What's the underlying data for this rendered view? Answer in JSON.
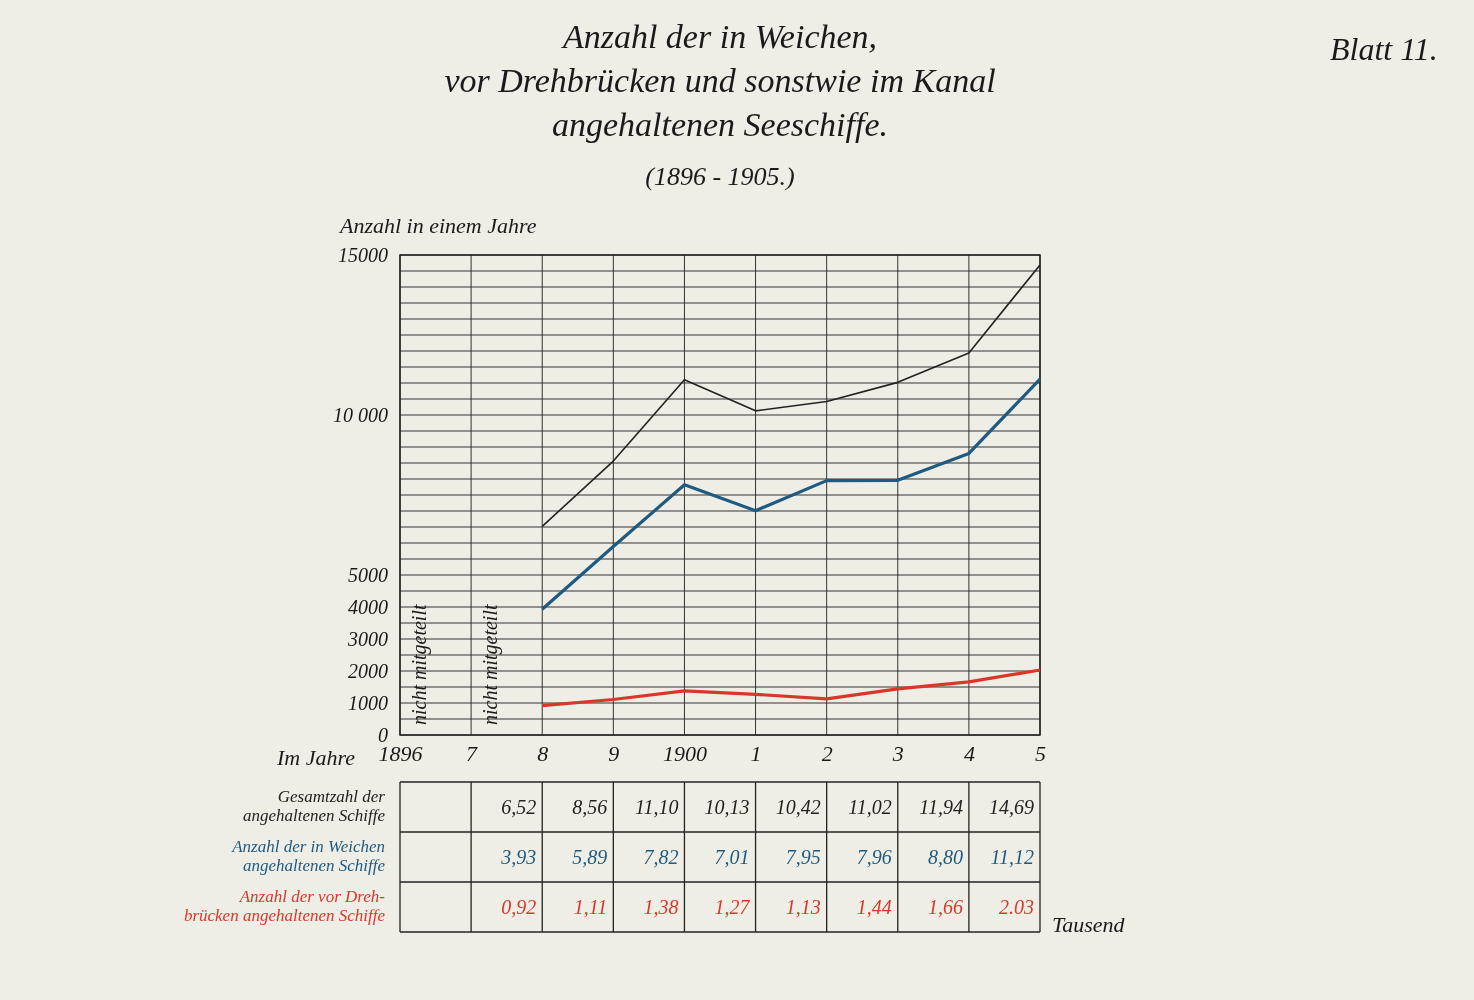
{
  "chart_data": [
    {
      "type": "line",
      "title": "Anzahl der in Weichen,\nvor Drehbrücken und sonstwie im Kanal\nangehaltenen Seeschiffe.",
      "subtitle": "(1896 - 1905.)",
      "xlabel": "Im Jahre",
      "ylabel": "Anzahl in einem Jahre",
      "categories": [
        "1896",
        "7",
        "8",
        "9",
        "1900",
        "1",
        "2",
        "3",
        "4",
        "5"
      ],
      "ylim": [
        0,
        15000
      ],
      "yticks": [
        0,
        {
          "value": 500,
          "label": null
        },
        1000,
        {
          "value": 1500,
          "label": null
        },
        2000,
        {
          "value": 2500,
          "label": null
        },
        3000,
        {
          "value": 3500,
          "label": null
        },
        4000,
        {
          "value": 4500,
          "label": null
        },
        5000,
        {
          "value": 5500,
          "label": null
        },
        {
          "value": 6000,
          "label": null
        },
        {
          "value": 6500,
          "label": null
        },
        {
          "value": 7000,
          "label": null
        },
        {
          "value": 7500,
          "label": null
        },
        {
          "value": 8000,
          "label": null
        },
        {
          "value": 8500,
          "label": null
        },
        {
          "value": 9000,
          "label": null
        },
        {
          "value": 9500,
          "label": null
        },
        {
          "value": 10000,
          "label": "10 000"
        },
        {
          "value": 10500,
          "label": null
        },
        {
          "value": 11000,
          "label": null
        },
        {
          "value": 11500,
          "label": null
        },
        {
          "value": 12000,
          "label": null
        },
        {
          "value": 12500,
          "label": null
        },
        {
          "value": 13000,
          "label": null
        },
        {
          "value": 13500,
          "label": null
        },
        {
          "value": 14000,
          "label": null
        },
        {
          "value": 14500,
          "label": null
        },
        15000
      ],
      "grid": true,
      "marker": "none",
      "line_style": "solid",
      "series": [
        {
          "color": "#222222",
          "values": [
            null,
            null,
            6520,
            8560,
            11100,
            10130,
            10420,
            11020,
            11940,
            14690
          ]
        },
        {
          "color": "#1f5a80",
          "values": [
            null,
            null,
            3930,
            5890,
            7820,
            7010,
            7950,
            7960,
            8800,
            11120
          ]
        },
        {
          "color": "#d8382a",
          "values": [
            null,
            null,
            920,
            1110,
            1380,
            1270,
            1130,
            1440,
            1660,
            2030
          ]
        }
      ],
      "annotations": [
        "nicht mitgeteilt",
        "nicht mitgeteilt",
        "Blatt 11."
      ]
    },
    {
      "type": "other",
      "y_categories": [
        "Gesamtzahl der\nangehaltenen Schiffe",
        "Anzahl der in Weichen\nangehaltenen Schiffe",
        "Anzahl der vor Dreh-\nbrücken angehaltenen Schiffe"
      ],
      "colors": [
        "#222222",
        "#1f5a80",
        "#d8382a"
      ],
      "cell_labels": [
        [
          null,
          null,
          "6,52",
          "8,56",
          "11,10",
          "10,13",
          "10,42",
          "11,02",
          "11,94",
          "14,69"
        ],
        [
          null,
          null,
          "3,93",
          "5,89",
          "7,82",
          "7,01",
          "7,95",
          "7,96",
          "8,80",
          "11,12"
        ],
        [
          null,
          null,
          "0,92",
          "1,11",
          "1,38",
          "1,27",
          "1,13",
          "1,44",
          "1,66",
          "2.03"
        ]
      ],
      "annotations": [
        "Tausend"
      ]
    }
  ]
}
